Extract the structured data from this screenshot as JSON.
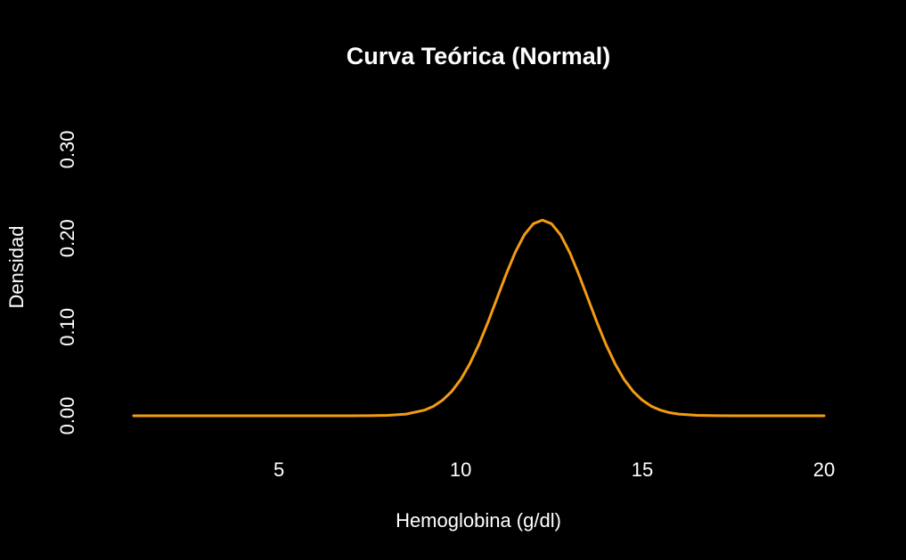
{
  "chart_data": {
    "type": "line",
    "title": "Curva Teórica (Normal)",
    "xlabel": "Hemoglobina (g/dl)",
    "ylabel": "Densidad",
    "xlim": [
      1,
      20
    ],
    "ylim": [
      0,
      0.31
    ],
    "x_ticks": [
      5,
      10,
      15,
      20
    ],
    "x_tick_labels": [
      "5",
      "10",
      "15",
      "20"
    ],
    "y_ticks": [
      0,
      0.1,
      0.2,
      0.3
    ],
    "y_tick_labels": [
      "0.00",
      "0.10",
      "0.20",
      "0.30"
    ],
    "grid": false,
    "colors": {
      "background": "#000000",
      "text": "#ffffff",
      "line": "#f39c12"
    },
    "series": [
      {
        "x": [
          1,
          2,
          3,
          4,
          5,
          6,
          7,
          7.5,
          8,
          8.5,
          9,
          9.25,
          9.5,
          9.75,
          10,
          10.25,
          10.5,
          10.75,
          11,
          11.25,
          11.5,
          11.75,
          12,
          12.25,
          12.5,
          12.75,
          13,
          13.25,
          13.5,
          13.75,
          14,
          14.25,
          14.5,
          14.75,
          15,
          15.25,
          15.5,
          15.75,
          16,
          16.5,
          17,
          17.5,
          18,
          19,
          20
        ],
        "y": [
          0,
          0,
          0,
          0,
          0,
          0,
          0,
          0.0001,
          0.0005,
          0.0019,
          0.0063,
          0.0107,
          0.0175,
          0.0273,
          0.0408,
          0.0585,
          0.0802,
          0.1053,
          0.1323,
          0.1593,
          0.184,
          0.2038,
          0.2164,
          0.2205,
          0.2164,
          0.2038,
          0.184,
          0.1593,
          0.1323,
          0.1053,
          0.0802,
          0.0585,
          0.0408,
          0.0273,
          0.0175,
          0.0107,
          0.0063,
          0.0035,
          0.0019,
          0.0005,
          0.0001,
          0,
          0,
          0,
          0
        ]
      }
    ]
  }
}
